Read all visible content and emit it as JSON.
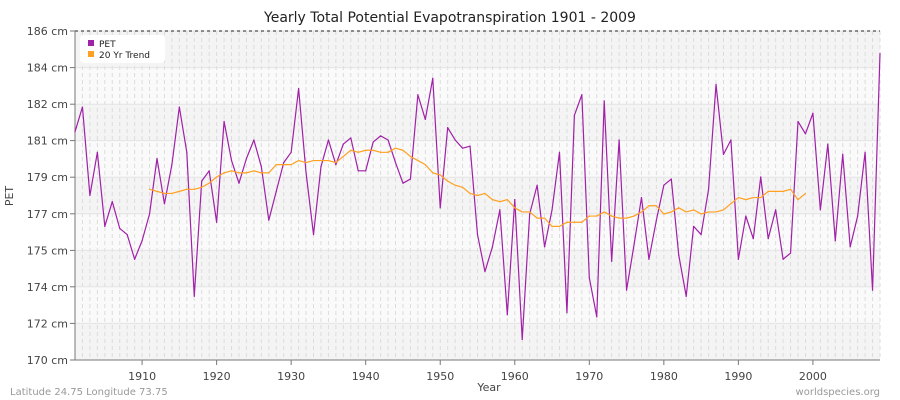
{
  "chart_data": {
    "type": "line",
    "title": "Yearly Total Potential Evapotranspiration 1901 - 2009",
    "xlabel": "Year",
    "ylabel": "PET",
    "xlim": [
      1901,
      2009
    ],
    "ylim": [
      170,
      186
    ],
    "x_ticks": [
      1910,
      1920,
      1930,
      1940,
      1950,
      1960,
      1970,
      1980,
      1990,
      2000
    ],
    "y_ticks": [
      170,
      171.78,
      173.56,
      175.33,
      177.11,
      178.89,
      180.67,
      182.44,
      184.22,
      186
    ],
    "y_tick_labels": [
      "170 cm",
      "172 cm",
      "174 cm",
      "175 cm",
      "177 cm",
      "179 cm",
      "181 cm",
      "182 cm",
      "184 cm",
      "186 cm"
    ],
    "grid": true,
    "legend_position": "top-left",
    "series": [
      {
        "name": "PET",
        "color": "#a020a8",
        "x_start": 1901,
        "values": [
          181.1,
          182.3,
          178.0,
          180.1,
          176.5,
          177.7,
          176.4,
          176.1,
          174.9,
          175.8,
          177.1,
          179.8,
          177.6,
          179.5,
          182.3,
          180.1,
          173.1,
          178.7,
          179.2,
          176.7,
          181.6,
          179.7,
          178.6,
          179.8,
          180.7,
          179.4,
          176.8,
          178.2,
          179.6,
          180.1,
          183.2,
          179.1,
          176.1,
          179.4,
          180.7,
          179.5,
          180.5,
          180.8,
          179.2,
          179.2,
          180.6,
          180.9,
          180.7,
          179.6,
          178.6,
          178.8,
          182.9,
          181.7,
          183.7,
          177.4,
          181.3,
          180.7,
          180.3,
          180.4,
          176.1,
          174.3,
          175.5,
          177.3,
          172.2,
          177.8,
          171.0,
          177.1,
          178.5,
          175.5,
          177.3,
          180.1,
          172.3,
          181.9,
          182.9,
          174.0,
          172.1,
          182.6,
          174.8,
          180.7,
          173.4,
          175.6,
          177.9,
          174.9,
          176.8,
          178.5,
          178.8,
          175.1,
          173.1,
          176.5,
          176.1,
          178.3,
          183.4,
          180.0,
          180.7,
          174.9,
          177.0,
          175.9,
          178.9,
          175.9,
          177.3,
          174.9,
          175.2,
          181.6,
          181.0,
          182.0,
          177.3,
          180.5,
          175.8,
          180.0,
          175.5,
          177.0,
          180.1,
          173.4,
          184.9
        ]
      },
      {
        "name": "20 Yr Trend",
        "color": "#ffa020",
        "x_start": 1911,
        "values": [
          178.3,
          178.2,
          178.1,
          178.1,
          178.2,
          178.3,
          178.3,
          178.4,
          178.6,
          178.9,
          179.1,
          179.2,
          179.1,
          179.1,
          179.2,
          179.1,
          179.1,
          179.5,
          179.5,
          179.5,
          179.7,
          179.6,
          179.7,
          179.7,
          179.7,
          179.6,
          179.9,
          180.2,
          180.1,
          180.2,
          180.2,
          180.1,
          180.1,
          180.3,
          180.2,
          179.9,
          179.7,
          179.5,
          179.1,
          179.0,
          178.7,
          178.5,
          178.4,
          178.1,
          178.0,
          178.1,
          177.8,
          177.7,
          177.8,
          177.4,
          177.2,
          177.2,
          176.9,
          176.9,
          176.5,
          176.5,
          176.7,
          176.7,
          176.7,
          177.0,
          177.0,
          177.2,
          177.0,
          176.9,
          176.9,
          177.0,
          177.2,
          177.5,
          177.5,
          177.1,
          177.2,
          177.4,
          177.2,
          177.3,
          177.1,
          177.2,
          177.2,
          177.3,
          177.6,
          177.9,
          177.8,
          177.9,
          177.9,
          178.2,
          178.2,
          178.2,
          178.3,
          177.8,
          178.1
        ]
      }
    ]
  },
  "footer": {
    "location": "Latitude 24.75 Longitude 73.75",
    "source": "worldspecies.org"
  }
}
